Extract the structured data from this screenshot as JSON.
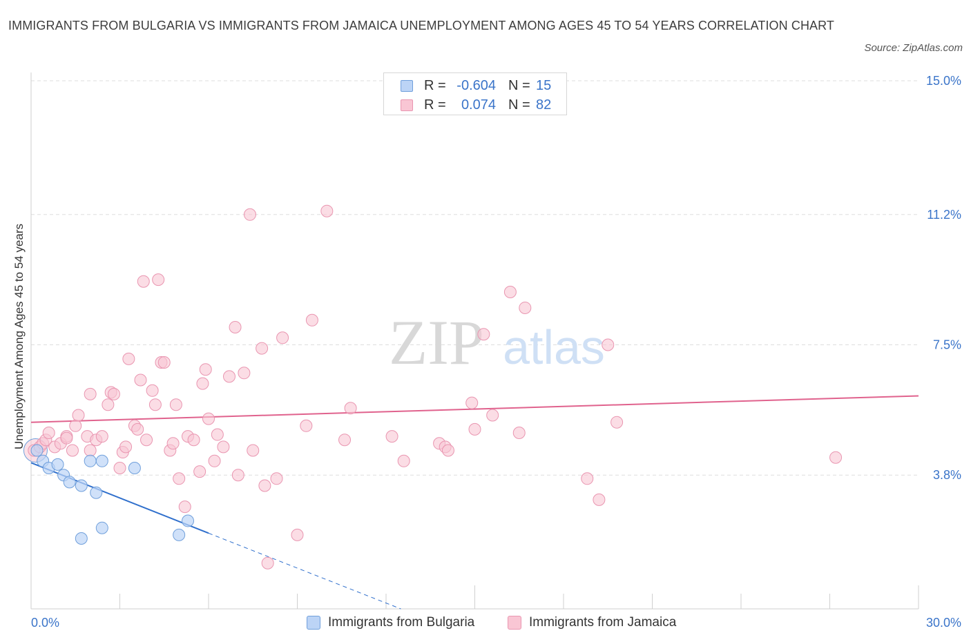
{
  "title": "IMMIGRANTS FROM BULGARIA VS IMMIGRANTS FROM JAMAICA UNEMPLOYMENT AMONG AGES 45 TO 54 YEARS CORRELATION CHART",
  "source": "Source: ZipAtlas.com",
  "watermark": {
    "zip": "ZIP",
    "atlas": "atlas"
  },
  "legend": {
    "rows": [
      {
        "r_label": "R =",
        "r_value": "-0.604",
        "n_label": "N =",
        "n_value": "15"
      },
      {
        "r_label": "R =",
        "r_value": "0.074",
        "n_label": "N =",
        "n_value": "82"
      }
    ]
  },
  "bottom_legend": [
    "Immigrants from Bulgaria",
    "Immigrants from Jamaica"
  ],
  "colors": {
    "bulgaria_fill": "#bcd4f6",
    "bulgaria_stroke": "#6f9fdb",
    "bulgaria_line": "#2f6fcc",
    "jamaica_fill": "#f9c6d4",
    "jamaica_stroke": "#e995b0",
    "jamaica_line": "#e0628d",
    "axis_label": "#3a74c9",
    "grid": "#dddddd"
  },
  "chart_data": {
    "type": "scatter",
    "title": "IMMIGRANTS FROM BULGARIA VS IMMIGRANTS FROM JAMAICA UNEMPLOYMENT AMONG AGES 45 TO 54 YEARS CORRELATION CHART",
    "xlabel": "",
    "ylabel": "Unemployment Among Ages 45 to 54 years",
    "xlim": [
      0,
      30
    ],
    "ylim": [
      0,
      15
    ],
    "x_tick_labels": [
      "0.0%",
      "30.0%"
    ],
    "y_ticks": [
      3.8,
      7.5,
      11.2,
      15.0
    ],
    "y_tick_labels": [
      "3.8%",
      "7.5%",
      "11.2%",
      "15.0%"
    ],
    "series": [
      {
        "name": "Immigrants from Bulgaria",
        "R": -0.604,
        "N": 15,
        "points": [
          [
            0.2,
            4.5
          ],
          [
            0.4,
            4.2
          ],
          [
            0.6,
            4.0
          ],
          [
            0.9,
            4.1
          ],
          [
            1.1,
            3.8
          ],
          [
            1.3,
            3.6
          ],
          [
            1.7,
            3.5
          ],
          [
            2.0,
            4.2
          ],
          [
            2.2,
            3.3
          ],
          [
            2.4,
            4.2
          ],
          [
            3.5,
            4.0
          ],
          [
            1.7,
            2.0
          ],
          [
            2.4,
            2.3
          ],
          [
            5.0,
            2.1
          ],
          [
            5.3,
            2.5
          ]
        ],
        "trend": {
          "x0": 0,
          "y0": 4.15,
          "x1": 6.0,
          "y1": 2.15,
          "dash_to_x": 12.5,
          "dash_to_y": 0
        }
      },
      {
        "name": "Immigrants from Jamaica",
        "R": 0.074,
        "N": 82,
        "points": [
          [
            0.1,
            4.5
          ],
          [
            0.3,
            4.6
          ],
          [
            0.4,
            4.7
          ],
          [
            0.5,
            4.8
          ],
          [
            0.6,
            5.0
          ],
          [
            0.8,
            4.6
          ],
          [
            1.0,
            4.7
          ],
          [
            1.2,
            4.9
          ],
          [
            1.2,
            4.85
          ],
          [
            1.4,
            4.5
          ],
          [
            1.5,
            5.2
          ],
          [
            1.6,
            5.5
          ],
          [
            1.9,
            4.9
          ],
          [
            2.0,
            6.1
          ],
          [
            2.0,
            4.5
          ],
          [
            2.2,
            4.8
          ],
          [
            2.4,
            4.9
          ],
          [
            2.6,
            5.8
          ],
          [
            2.7,
            6.15
          ],
          [
            2.8,
            6.1
          ],
          [
            3.0,
            4.0
          ],
          [
            3.1,
            4.45
          ],
          [
            3.2,
            4.6
          ],
          [
            3.3,
            7.1
          ],
          [
            3.5,
            5.2
          ],
          [
            3.6,
            5.1
          ],
          [
            3.7,
            6.5
          ],
          [
            3.8,
            9.3
          ],
          [
            3.9,
            4.8
          ],
          [
            4.1,
            6.2
          ],
          [
            4.2,
            5.8
          ],
          [
            4.3,
            9.35
          ],
          [
            4.4,
            7.0
          ],
          [
            4.5,
            7.0
          ],
          [
            4.7,
            4.5
          ],
          [
            4.8,
            4.7
          ],
          [
            4.9,
            5.8
          ],
          [
            5.0,
            3.7
          ],
          [
            5.2,
            2.9
          ],
          [
            5.3,
            4.9
          ],
          [
            5.5,
            4.8
          ],
          [
            5.7,
            3.9
          ],
          [
            5.8,
            6.4
          ],
          [
            5.9,
            6.8
          ],
          [
            6.0,
            5.4
          ],
          [
            6.2,
            4.2
          ],
          [
            6.3,
            4.95
          ],
          [
            6.5,
            4.6
          ],
          [
            6.7,
            6.6
          ],
          [
            6.9,
            8.0
          ],
          [
            7.0,
            3.8
          ],
          [
            7.2,
            6.7
          ],
          [
            7.4,
            11.2
          ],
          [
            7.5,
            4.5
          ],
          [
            7.8,
            7.4
          ],
          [
            7.9,
            3.5
          ],
          [
            8.0,
            1.3
          ],
          [
            8.3,
            3.7
          ],
          [
            8.5,
            7.7
          ],
          [
            9.0,
            2.1
          ],
          [
            9.3,
            5.2
          ],
          [
            9.5,
            8.2
          ],
          [
            10.0,
            11.3
          ],
          [
            10.6,
            4.8
          ],
          [
            10.8,
            5.7
          ],
          [
            12.2,
            4.9
          ],
          [
            12.6,
            4.2
          ],
          [
            13.8,
            4.7
          ],
          [
            14.0,
            4.6
          ],
          [
            14.1,
            4.5
          ],
          [
            14.9,
            5.85
          ],
          [
            15.0,
            5.1
          ],
          [
            15.3,
            7.8
          ],
          [
            15.6,
            5.5
          ],
          [
            16.2,
            9.0
          ],
          [
            16.5,
            5.0
          ],
          [
            16.7,
            8.55
          ],
          [
            18.8,
            3.7
          ],
          [
            19.2,
            3.1
          ],
          [
            19.5,
            7.5
          ],
          [
            19.8,
            5.3
          ],
          [
            27.2,
            4.3
          ]
        ],
        "trend": {
          "x0": 0,
          "y0": 5.3,
          "x1": 30,
          "y1": 6.05
        }
      }
    ]
  }
}
